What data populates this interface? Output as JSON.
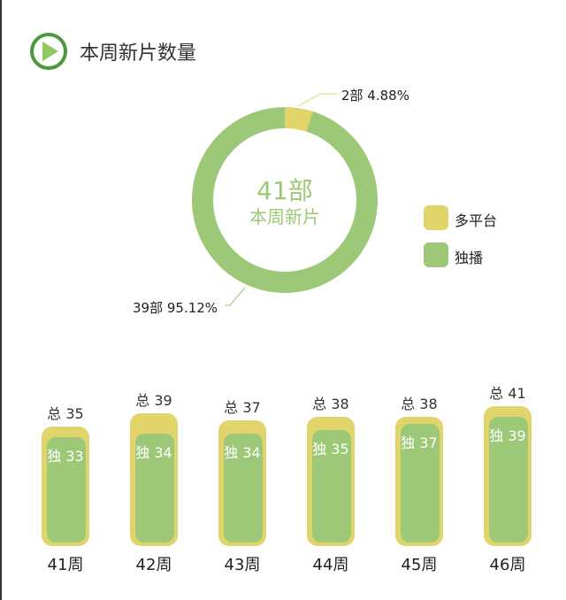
{
  "header": {
    "title": "本周新片数量",
    "icon": "play-circle-icon"
  },
  "colors": {
    "multi": "#e0d46a",
    "exclusive": "#9dc878",
    "accent": "#4a9a3c"
  },
  "chart_data": [
    {
      "type": "pie",
      "title": "本周新片",
      "center_value": "41部",
      "center_label": "本周新片",
      "slices": [
        {
          "name": "多平台",
          "count": 2,
          "label": "2部  4.88%",
          "percent": 4.88
        },
        {
          "name": "独播",
          "count": 39,
          "label": "39部  95.12%",
          "percent": 95.12
        }
      ],
      "legend": [
        "多平台",
        "独播"
      ],
      "legend_position": "right"
    },
    {
      "type": "bar",
      "categories": [
        "41周",
        "42周",
        "43周",
        "44周",
        "45周",
        "46周"
      ],
      "series": [
        {
          "name": "总",
          "values": [
            35,
            39,
            37,
            38,
            38,
            41
          ]
        },
        {
          "name": "独",
          "values": [
            33,
            34,
            34,
            35,
            37,
            39
          ]
        }
      ],
      "total_prefix": "总",
      "exclusive_prefix": "独"
    }
  ]
}
